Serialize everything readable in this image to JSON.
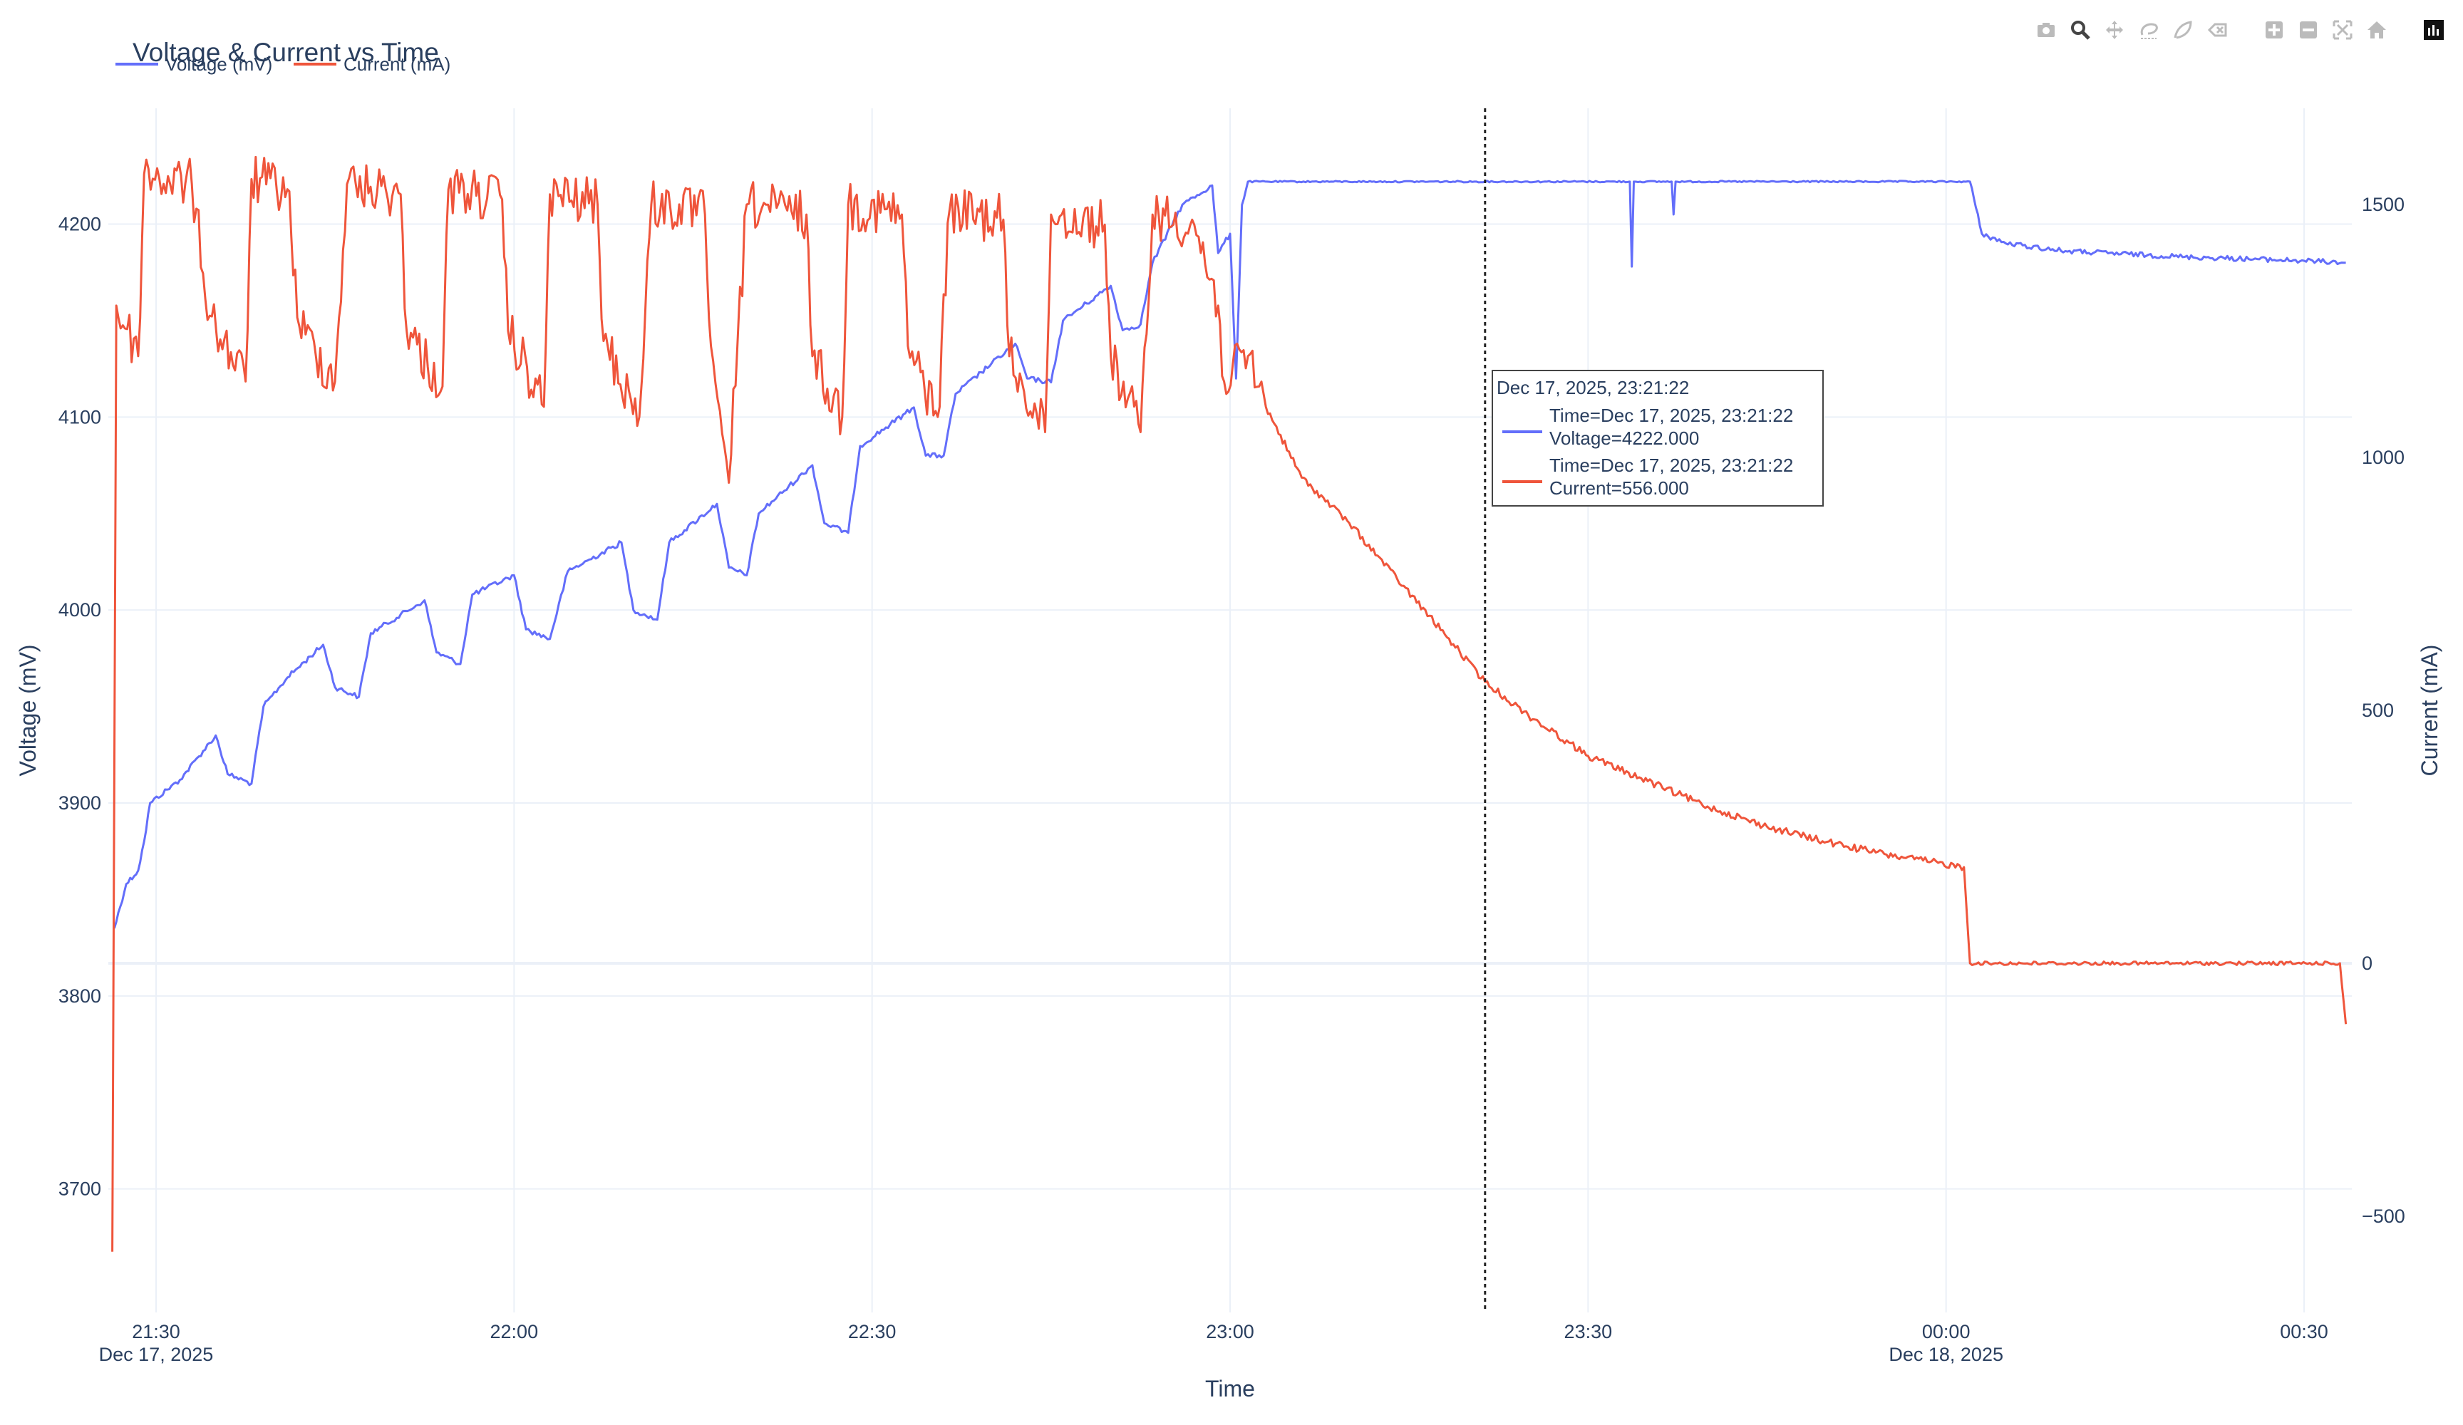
{
  "chart_data": {
    "type": "line",
    "title": "Voltage & Current vs Time",
    "xlabel": "Time",
    "ylabel": "Voltage (mV)",
    "y2label": "Current (mA)",
    "x_range": [
      "2025-12-17 21:26",
      "2025-12-18 00:34"
    ],
    "ylim": [
      3636,
      4260
    ],
    "y2lim": [
      -690,
      1690
    ],
    "x_ticks": [
      {
        "time": "2025-12-17 21:30",
        "label": "21:30",
        "sublabel": "Dec 17, 2025"
      },
      {
        "time": "2025-12-17 22:00",
        "label": "22:00",
        "sublabel": ""
      },
      {
        "time": "2025-12-17 22:30",
        "label": "22:30",
        "sublabel": ""
      },
      {
        "time": "2025-12-17 23:00",
        "label": "23:00",
        "sublabel": ""
      },
      {
        "time": "2025-12-17 23:30",
        "label": "23:30",
        "sublabel": ""
      },
      {
        "time": "2025-12-18 00:00",
        "label": "00:00",
        "sublabel": "Dec 18, 2025"
      },
      {
        "time": "2025-12-18 00:30",
        "label": "00:30",
        "sublabel": ""
      }
    ],
    "y_ticks": [
      3700,
      3800,
      3900,
      4000,
      4100,
      4200
    ],
    "y2_ticks": [
      -500,
      0,
      500,
      1000,
      1500
    ],
    "grid": true,
    "legend": "top-left, horizontal",
    "series": [
      {
        "name": "Voltage (mV)",
        "axis": "y",
        "color": "#636efa",
        "points": [
          [
            "2025-12-17 21:26:30",
            3835
          ],
          [
            "2025-12-17 21:27:30",
            3858
          ],
          [
            "2025-12-17 21:28:30",
            3865
          ],
          [
            "2025-12-17 21:29:00",
            3880
          ],
          [
            "2025-12-17 21:29:30",
            3900
          ],
          [
            "2025-12-17 21:32:00",
            3912
          ],
          [
            "2025-12-17 21:35:00",
            3935
          ],
          [
            "2025-12-17 21:36:00",
            3915
          ],
          [
            "2025-12-17 21:38:00",
            3910
          ],
          [
            "2025-12-17 21:39:00",
            3950
          ],
          [
            "2025-12-17 21:41:00",
            3965
          ],
          [
            "2025-12-17 21:44:00",
            3982
          ],
          [
            "2025-12-17 21:45:00",
            3960
          ],
          [
            "2025-12-17 21:47:00",
            3955
          ],
          [
            "2025-12-17 21:48:00",
            3988
          ],
          [
            "2025-12-17 21:52:30",
            4005
          ],
          [
            "2025-12-17 21:53:30",
            3978
          ],
          [
            "2025-12-17 21:55:30",
            3972
          ],
          [
            "2025-12-17 21:56:30",
            4008
          ],
          [
            "2025-12-17 22:00:00",
            4018
          ],
          [
            "2025-12-17 22:01:00",
            3990
          ],
          [
            "2025-12-17 22:03:00",
            3985
          ],
          [
            "2025-12-17 22:04:30",
            4020
          ],
          [
            "2025-12-17 22:09:00",
            4035
          ],
          [
            "2025-12-17 22:10:00",
            4000
          ],
          [
            "2025-12-17 22:12:00",
            3995
          ],
          [
            "2025-12-17 22:13:00",
            4035
          ],
          [
            "2025-12-17 22:17:00",
            4055
          ],
          [
            "2025-12-17 22:18:00",
            4022
          ],
          [
            "2025-12-17 22:19:30",
            4018
          ],
          [
            "2025-12-17 22:20:30",
            4050
          ],
          [
            "2025-12-17 22:25:00",
            4075
          ],
          [
            "2025-12-17 22:26:00",
            4045
          ],
          [
            "2025-12-17 22:28:00",
            4040
          ],
          [
            "2025-12-17 22:29:00",
            4085
          ],
          [
            "2025-12-17 22:33:30",
            4105
          ],
          [
            "2025-12-17 22:34:30",
            4080
          ],
          [
            "2025-12-17 22:36:00",
            4080
          ],
          [
            "2025-12-17 22:37:00",
            4112
          ],
          [
            "2025-12-17 22:42:00",
            4138
          ],
          [
            "2025-12-17 22:43:00",
            4120
          ],
          [
            "2025-12-17 22:45:00",
            4118
          ],
          [
            "2025-12-17 22:46:00",
            4150
          ],
          [
            "2025-12-17 22:50:00",
            4168
          ],
          [
            "2025-12-17 22:51:00",
            4145
          ],
          [
            "2025-12-17 22:52:30",
            4148
          ],
          [
            "2025-12-17 22:53:30",
            4180
          ],
          [
            "2025-12-17 22:56:00",
            4210
          ],
          [
            "2025-12-17 22:58:30",
            4220
          ],
          [
            "2025-12-17 22:59:00",
            4185
          ],
          [
            "2025-12-17 23:00:00",
            4195
          ],
          [
            "2025-12-17 23:00:30",
            4120
          ],
          [
            "2025-12-17 23:01:00",
            4210
          ],
          [
            "2025-12-17 23:01:30",
            4222
          ],
          [
            "2025-12-17 23:21:22",
            4222
          ],
          [
            "2025-12-17 23:33:30",
            4222
          ],
          [
            "2025-12-17 23:33:40",
            4178
          ],
          [
            "2025-12-17 23:33:50",
            4222
          ],
          [
            "2025-12-17 23:37:00",
            4222
          ],
          [
            "2025-12-17 23:37:10",
            4205
          ],
          [
            "2025-12-17 23:37:20",
            4222
          ],
          [
            "2025-12-18 00:02:00",
            4222
          ],
          [
            "2025-12-18 00:03:00",
            4195
          ],
          [
            "2025-12-18 00:05:00",
            4190
          ],
          [
            "2025-12-18 00:10:00",
            4186
          ],
          [
            "2025-12-18 00:20:00",
            4183
          ],
          [
            "2025-12-18 00:30:00",
            4181
          ],
          [
            "2025-12-18 00:33:30",
            4180
          ]
        ]
      },
      {
        "name": "Current (mA)",
        "axis": "y2",
        "color": "#ef553b",
        "points": [
          [
            "2025-12-17 21:26:20",
            -570
          ],
          [
            "2025-12-17 21:26:40",
            1300
          ],
          [
            "2025-12-17 21:28:30",
            1200
          ],
          [
            "2025-12-17 21:29:00",
            1560
          ],
          [
            "2025-12-17 21:33:00",
            1540
          ],
          [
            "2025-12-17 21:34:30",
            1280
          ],
          [
            "2025-12-17 21:37:30",
            1150
          ],
          [
            "2025-12-17 21:38:00",
            1550
          ],
          [
            "2025-12-17 21:41:00",
            1530
          ],
          [
            "2025-12-17 21:42:00",
            1260
          ],
          [
            "2025-12-17 21:45:00",
            1150
          ],
          [
            "2025-12-17 21:46:00",
            1540
          ],
          [
            "2025-12-17 21:50:30",
            1520
          ],
          [
            "2025-12-17 21:51:00",
            1250
          ],
          [
            "2025-12-17 21:54:00",
            1140
          ],
          [
            "2025-12-17 21:54:30",
            1530
          ],
          [
            "2025-12-17 21:59:00",
            1510
          ],
          [
            "2025-12-17 21:59:30",
            1250
          ],
          [
            "2025-12-17 22:02:30",
            1100
          ],
          [
            "2025-12-17 22:03:00",
            1520
          ],
          [
            "2025-12-17 22:07:00",
            1500
          ],
          [
            "2025-12-17 22:07:30",
            1230
          ],
          [
            "2025-12-17 22:10:30",
            1080
          ],
          [
            "2025-12-17 22:11:30",
            1500
          ],
          [
            "2025-12-17 22:16:00",
            1480
          ],
          [
            "2025-12-17 22:16:30",
            1220
          ],
          [
            "2025-12-17 22:18:00",
            950
          ],
          [
            "2025-12-17 22:19:30",
            1500
          ],
          [
            "2025-12-17 22:24:30",
            1480
          ],
          [
            "2025-12-17 22:25:00",
            1200
          ],
          [
            "2025-12-17 22:27:30",
            1080
          ],
          [
            "2025-12-17 22:28:00",
            1500
          ],
          [
            "2025-12-17 22:32:30",
            1480
          ],
          [
            "2025-12-17 22:33:00",
            1220
          ],
          [
            "2025-12-17 22:35:30",
            1080
          ],
          [
            "2025-12-17 22:36:30",
            1490
          ],
          [
            "2025-12-17 22:41:00",
            1470
          ],
          [
            "2025-12-17 22:41:30",
            1200
          ],
          [
            "2025-12-17 22:44:30",
            1050
          ],
          [
            "2025-12-17 22:45:00",
            1480
          ],
          [
            "2025-12-17 22:49:30",
            1460
          ],
          [
            "2025-12-17 22:50:00",
            1200
          ],
          [
            "2025-12-17 22:52:30",
            1050
          ],
          [
            "2025-12-17 22:53:30",
            1480
          ],
          [
            "2025-12-17 22:57:00",
            1460
          ],
          [
            "2025-12-17 22:59:00",
            1300
          ],
          [
            "2025-12-17 22:59:30",
            1150
          ],
          [
            "2025-12-17 23:01:30",
            1200
          ],
          [
            "2025-12-17 23:03:00",
            1100
          ],
          [
            "2025-12-17 23:06:00",
            960
          ],
          [
            "2025-12-17 23:10:00",
            870
          ],
          [
            "2025-12-17 23:14:00",
            760
          ],
          [
            "2025-12-17 23:18:00",
            650
          ],
          [
            "2025-12-17 23:21:22",
            556
          ],
          [
            "2025-12-17 23:25:00",
            490
          ],
          [
            "2025-12-17 23:30:00",
            410
          ],
          [
            "2025-12-17 23:35:00",
            360
          ],
          [
            "2025-12-17 23:40:00",
            310
          ],
          [
            "2025-12-17 23:45:00",
            270
          ],
          [
            "2025-12-17 23:50:00",
            240
          ],
          [
            "2025-12-17 23:55:00",
            215
          ],
          [
            "2025-12-18 00:01:30",
            190
          ],
          [
            "2025-12-18 00:02:00",
            0
          ],
          [
            "2025-12-18 00:15:00",
            0
          ],
          [
            "2025-12-18 00:33:00",
            0
          ],
          [
            "2025-12-18 00:33:30",
            -120
          ]
        ]
      }
    ],
    "hover": {
      "header": "Dec 17, 2025, 23:21:22",
      "time": "2025-12-17 23:21:22",
      "lines": [
        {
          "series": "Voltage (mV)",
          "text1": "Time=Dec 17, 2025, 23:21:22",
          "text2": "Voltage=4222.000"
        },
        {
          "series": "Current (mA)",
          "text1": "Time=Dec 17, 2025, 23:21:22",
          "text2": "Current=556.000"
        }
      ]
    }
  },
  "toolbar": {
    "buttons": [
      {
        "name": "download-plot-button",
        "icon": "camera-icon",
        "active": false
      },
      {
        "name": "zoom-button",
        "icon": "zoom-magnifier-icon",
        "active": true
      },
      {
        "name": "pan-button",
        "icon": "pan-arrows-icon",
        "active": false
      },
      {
        "name": "box-select-button",
        "icon": "lasso-box-icon",
        "active": false
      },
      {
        "name": "lasso-select-button",
        "icon": "lasso-icon",
        "active": false
      },
      {
        "name": "erase-select-button",
        "icon": "eraser-icon",
        "active": false
      },
      {
        "name": "zoom-in-button",
        "icon": "plus-square-icon",
        "active": false
      },
      {
        "name": "zoom-out-button",
        "icon": "minus-square-icon",
        "active": false
      },
      {
        "name": "autoscale-button",
        "icon": "autoscale-icon",
        "active": false
      },
      {
        "name": "reset-axes-button",
        "icon": "home-icon",
        "active": false
      },
      {
        "name": "plotly-logo-button",
        "icon": "plotly-logo-icon",
        "active": false
      }
    ]
  }
}
